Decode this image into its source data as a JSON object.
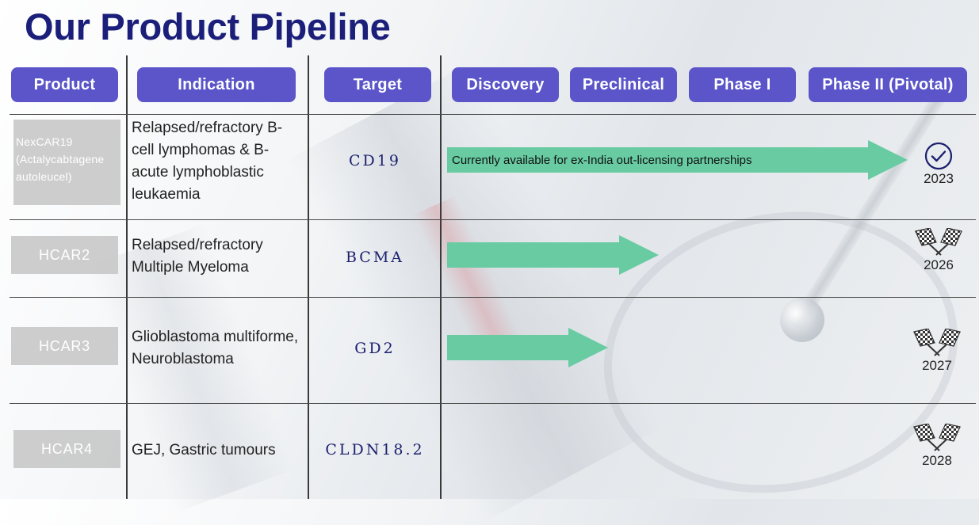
{
  "title": "Our Product Pipeline",
  "headers": {
    "product": "Product",
    "indication": "Indication",
    "target": "Target",
    "discovery": "Discovery",
    "preclinical": "Preclinical",
    "phase1": "Phase I",
    "phase2": "Phase II (Pivotal)"
  },
  "colors": {
    "title": "#1b1f7a",
    "header_fill": "#5b55c9",
    "arrow": "#68cba2",
    "target_text": "#1b1f6e"
  },
  "rows": [
    {
      "product": "NexCAR19 (Actalycabtagene autoleucel)",
      "indication": "Relapsed/refractory B-cell lymphomas & B-acute lymphoblastic leukaemia",
      "target": "CD19",
      "stage_reached": "Phase II (Pivotal)",
      "note": "Currently available for ex-India out-licensing partnerships",
      "milestone_icon": "check-circle-icon",
      "year": "2023"
    },
    {
      "product": "HCAR2",
      "indication": "Relapsed/refractory Multiple Myeloma",
      "target": "BCMA",
      "stage_reached": "Preclinical",
      "milestone_icon": "checkered-flags-icon",
      "year": "2026"
    },
    {
      "product": "HCAR3",
      "indication": "Glioblastoma multiforme, Neuroblastoma",
      "target": "GD2",
      "stage_reached": "Discovery",
      "milestone_icon": "checkered-flags-icon",
      "year": "2027"
    },
    {
      "product": "HCAR4",
      "indication": "GEJ, Gastric tumours",
      "target": "CLDN18.2",
      "stage_reached": "",
      "milestone_icon": "checkered-flags-icon",
      "year": "2028"
    }
  ]
}
